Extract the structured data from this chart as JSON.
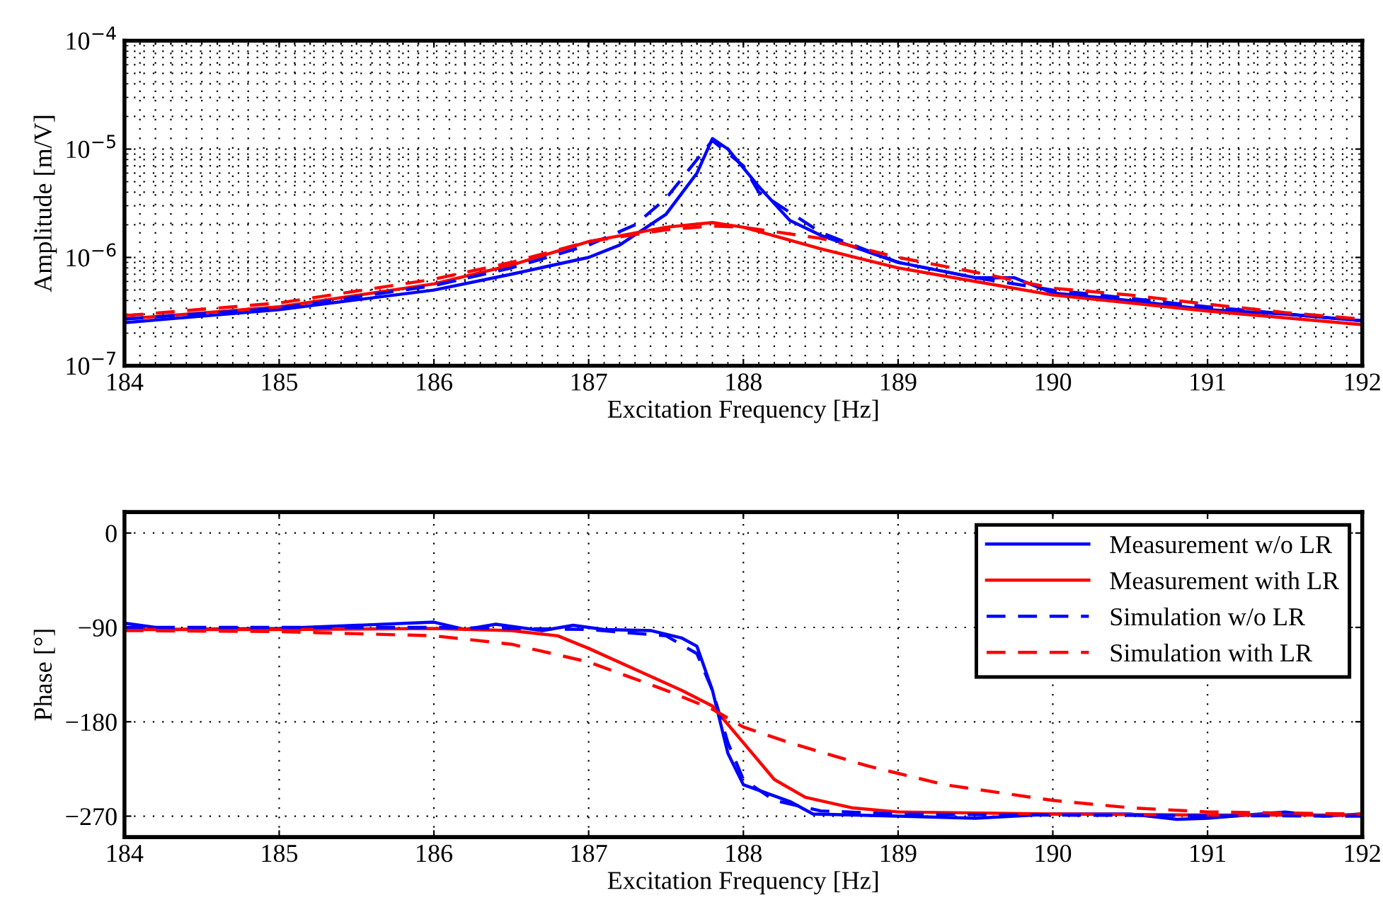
{
  "chart_data": [
    {
      "type": "line",
      "xlabel": "Excitation Frequency [Hz]",
      "ylabel": "Amplitude [m/V]",
      "log": "y",
      "grid": true,
      "legend": false,
      "xlim": [
        184,
        192
      ],
      "xticks": [
        184,
        185,
        186,
        187,
        188,
        189,
        190,
        191,
        192
      ],
      "ylim": [
        1e-07,
        0.0001
      ],
      "yticks": [
        {
          "value": 1e-07,
          "label": "10$^{−7}$"
        },
        {
          "value": 1e-06,
          "label": "10$^{−6}$"
        },
        {
          "value": 1e-05,
          "label": "10$^{−5}$"
        },
        {
          "value": 0.0001,
          "label": "10$^{−4}$"
        }
      ],
      "series": [
        {
          "color": "#0000ff",
          "line_style": "solid",
          "x": [
            184,
            185,
            186,
            186.5,
            187,
            187.2,
            187.5,
            187.7,
            187.8,
            187.9,
            188.1,
            188.3,
            188.5,
            189,
            189.5,
            189.75,
            190,
            190.5,
            191,
            191.5,
            192
          ],
          "values": [
            2.5e-07,
            3.3e-07,
            5e-07,
            7e-07,
            1e-06,
            1.3e-06,
            2.5e-06,
            6e-06,
            1.25e-05,
            1e-05,
            4.5e-06,
            2.2e-06,
            1.6e-06,
            9e-07,
            6.5e-07,
            6.5e-07,
            4.7e-07,
            4e-07,
            3.3e-07,
            3e-07,
            2.6e-07
          ]
        },
        {
          "color": "#ff0000",
          "line_style": "solid",
          "x": [
            184,
            185,
            186,
            186.5,
            187,
            187.5,
            187.8,
            188,
            188.5,
            189,
            189.5,
            190,
            191,
            192
          ],
          "values": [
            2.7e-07,
            3.5e-07,
            5.7e-07,
            8.5e-07,
            1.4e-06,
            1.9e-06,
            2.1e-06,
            1.9e-06,
            1.2e-06,
            8e-07,
            6e-07,
            4.5e-07,
            3.2e-07,
            2.4e-07
          ]
        },
        {
          "color": "#0000ff",
          "line_style": "dashed",
          "x": [
            184,
            185,
            186,
            186.5,
            187,
            187.3,
            187.5,
            187.7,
            187.8,
            188,
            188.1,
            188.5,
            189,
            189.5,
            190,
            191,
            192
          ],
          "values": [
            2.7e-07,
            3.4e-07,
            5.5e-07,
            8e-07,
            1.3e-06,
            2e-06,
            3.5e-06,
            8e-06,
            1.2e-05,
            7e-06,
            4e-06,
            1.7e-06,
            9e-07,
            6.5e-07,
            5e-07,
            3.5e-07,
            2.6e-07
          ]
        },
        {
          "color": "#ff0000",
          "line_style": "dashed",
          "x": [
            184,
            185,
            186,
            186.5,
            187,
            187.5,
            187.8,
            188,
            188.5,
            189,
            189.5,
            190,
            190.5,
            191,
            191.5,
            192
          ],
          "values": [
            2.9e-07,
            3.8e-07,
            6.3e-07,
            9e-07,
            1.4e-06,
            1.8e-06,
            1.95e-06,
            1.9e-06,
            1.5e-06,
            1e-06,
            7.3e-07,
            5.2e-07,
            4.5e-07,
            3.7e-07,
            3.1e-07,
            2.7e-07
          ]
        }
      ]
    },
    {
      "type": "line",
      "xlabel": "Excitation Frequency [Hz]",
      "ylabel": "Phase [°]",
      "grid": true,
      "legend": "top right",
      "xlim": [
        184,
        192
      ],
      "xticks": [
        184,
        185,
        186,
        187,
        188,
        189,
        190,
        191,
        192
      ],
      "ylim": [
        -290,
        20
      ],
      "yticks": [
        {
          "value": -270,
          "label": "−270"
        },
        {
          "value": -180,
          "label": "−180"
        },
        {
          "value": -90,
          "label": "−90"
        },
        0
      ],
      "series": [
        {
          "name": "Measurement w/o LR",
          "color": "#0000ff",
          "line_style": "solid",
          "x": [
            184,
            184.3,
            185,
            186,
            186.2,
            186.4,
            186.7,
            186.9,
            187.1,
            187.4,
            187.6,
            187.7,
            187.8,
            187.9,
            188,
            188.3,
            188.45,
            189,
            189.5,
            190,
            190.5,
            190.8,
            191,
            191.5,
            191.75,
            192
          ],
          "values": [
            -86,
            -92,
            -91,
            -85,
            -92,
            -87,
            -93,
            -88,
            -92,
            -93,
            -100,
            -108,
            -150,
            -210,
            -240,
            -256,
            -268,
            -270,
            -272,
            -268,
            -268,
            -273,
            -272,
            -266,
            -270,
            -268
          ]
        },
        {
          "name": "Measurement with LR",
          "color": "#ff0000",
          "line_style": "solid",
          "x": [
            184,
            185,
            186,
            186.5,
            186.8,
            187,
            187.3,
            187.6,
            187.8,
            188,
            188.2,
            188.4,
            188.7,
            189,
            190,
            191,
            192
          ],
          "values": [
            -92,
            -92,
            -91,
            -93,
            -98,
            -110,
            -130,
            -150,
            -165,
            -200,
            -235,
            -252,
            -262,
            -266,
            -268,
            -269,
            -269
          ]
        },
        {
          "name": "Simulation w/o LR",
          "color": "#0000ff",
          "line_style": "dashed",
          "x": [
            184,
            186,
            187,
            187.5,
            187.7,
            187.8,
            187.9,
            188,
            188.2,
            188.5,
            189,
            190,
            192
          ],
          "values": [
            -90,
            -90,
            -92,
            -98,
            -115,
            -150,
            -200,
            -235,
            -255,
            -265,
            -268,
            -269,
            -270
          ]
        },
        {
          "name": "Simulation with LR",
          "color": "#ff0000",
          "line_style": "dashed",
          "x": [
            184,
            185,
            185.5,
            186,
            186.5,
            187,
            187.5,
            187.8,
            188,
            188.3,
            188.8,
            189.3,
            190,
            190.5,
            191,
            192
          ],
          "values": [
            -93,
            -94,
            -96,
            -98,
            -106,
            -123,
            -150,
            -168,
            -185,
            -200,
            -222,
            -240,
            -255,
            -262,
            -266,
            -268
          ]
        }
      ]
    }
  ]
}
